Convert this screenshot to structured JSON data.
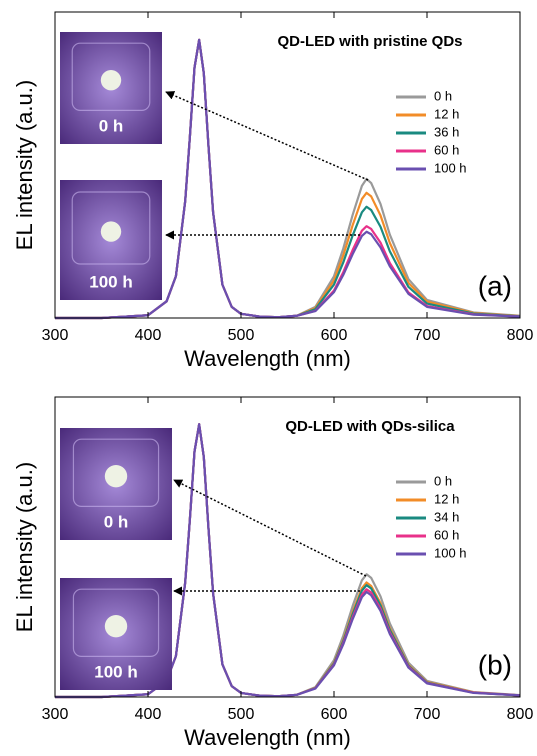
{
  "chart_data": [
    {
      "type": "line",
      "title": "QD-LED with pristine QDs",
      "panel_label": "(a)",
      "xlabel": "Wavelength (nm)",
      "ylabel": "EL intensity (a.u.)",
      "xlim": [
        300,
        800
      ],
      "xticks": [
        300,
        400,
        500,
        600,
        700,
        800
      ],
      "ylim": [
        0,
        1.1
      ],
      "legend": "upper right",
      "insets": [
        "0 h",
        "100 h"
      ],
      "x": [
        300,
        350,
        400,
        420,
        430,
        440,
        445,
        450,
        455,
        460,
        465,
        470,
        480,
        490,
        500,
        520,
        540,
        560,
        580,
        600,
        610,
        620,
        630,
        635,
        640,
        650,
        660,
        680,
        700,
        750,
        800
      ],
      "series": [
        {
          "name": "0 h",
          "color": "#9a9a9a",
          "values": [
            0,
            0,
            0.01,
            0.06,
            0.15,
            0.42,
            0.65,
            0.9,
            1.0,
            0.88,
            0.62,
            0.38,
            0.12,
            0.04,
            0.015,
            0.005,
            0.003,
            0.008,
            0.04,
            0.15,
            0.25,
            0.37,
            0.475,
            0.5,
            0.485,
            0.41,
            0.3,
            0.14,
            0.065,
            0.02,
            0.008
          ]
        },
        {
          "name": "12 h",
          "color": "#f28c28",
          "values": [
            0,
            0,
            0.01,
            0.06,
            0.15,
            0.42,
            0.65,
            0.9,
            1.0,
            0.88,
            0.62,
            0.38,
            0.12,
            0.04,
            0.015,
            0.005,
            0.003,
            0.008,
            0.036,
            0.135,
            0.225,
            0.333,
            0.428,
            0.45,
            0.437,
            0.369,
            0.27,
            0.126,
            0.059,
            0.018,
            0.007
          ]
        },
        {
          "name": "36 h",
          "color": "#1a8a80",
          "values": [
            0,
            0,
            0.01,
            0.06,
            0.15,
            0.42,
            0.65,
            0.9,
            1.0,
            0.88,
            0.62,
            0.38,
            0.12,
            0.04,
            0.015,
            0.005,
            0.003,
            0.008,
            0.032,
            0.12,
            0.2,
            0.296,
            0.38,
            0.4,
            0.388,
            0.328,
            0.24,
            0.112,
            0.052,
            0.016,
            0.006
          ]
        },
        {
          "name": "60 h",
          "color": "#e8318a",
          "values": [
            0,
            0,
            0.01,
            0.06,
            0.15,
            0.42,
            0.65,
            0.9,
            1.0,
            0.88,
            0.62,
            0.38,
            0.12,
            0.04,
            0.015,
            0.005,
            0.003,
            0.008,
            0.026,
            0.099,
            0.165,
            0.244,
            0.314,
            0.33,
            0.32,
            0.271,
            0.198,
            0.092,
            0.043,
            0.013,
            0.005
          ]
        },
        {
          "name": "100 h",
          "color": "#6a4fb0",
          "values": [
            0,
            0,
            0.01,
            0.06,
            0.15,
            0.42,
            0.65,
            0.9,
            1.0,
            0.88,
            0.62,
            0.38,
            0.12,
            0.04,
            0.015,
            0.005,
            0.003,
            0.008,
            0.025,
            0.093,
            0.155,
            0.229,
            0.295,
            0.31,
            0.301,
            0.254,
            0.186,
            0.087,
            0.04,
            0.012,
            0.005
          ]
        }
      ]
    },
    {
      "type": "line",
      "title": "QD-LED with QDs-silica",
      "panel_label": "(b)",
      "xlabel": "Wavelength (nm)",
      "ylabel": "EL intensity (a.u.)",
      "xlim": [
        300,
        800
      ],
      "xticks": [
        300,
        400,
        500,
        600,
        700,
        800
      ],
      "ylim": [
        0,
        1.1
      ],
      "legend": "upper right",
      "insets": [
        "0 h",
        "100 h"
      ],
      "x": [
        300,
        350,
        400,
        420,
        430,
        440,
        445,
        450,
        455,
        460,
        465,
        470,
        480,
        490,
        500,
        520,
        540,
        560,
        580,
        600,
        610,
        620,
        630,
        635,
        640,
        650,
        660,
        680,
        700,
        750,
        800
      ],
      "series": [
        {
          "name": "0 h",
          "color": "#9a9a9a",
          "values": [
            0,
            0,
            0.01,
            0.06,
            0.15,
            0.42,
            0.65,
            0.9,
            1.0,
            0.88,
            0.62,
            0.38,
            0.12,
            0.04,
            0.015,
            0.005,
            0.003,
            0.008,
            0.036,
            0.135,
            0.225,
            0.333,
            0.428,
            0.45,
            0.437,
            0.369,
            0.27,
            0.126,
            0.059,
            0.018,
            0.007
          ]
        },
        {
          "name": "12 h",
          "color": "#f28c28",
          "values": [
            0,
            0,
            0.01,
            0.06,
            0.15,
            0.42,
            0.65,
            0.9,
            1.0,
            0.88,
            0.62,
            0.38,
            0.12,
            0.04,
            0.015,
            0.005,
            0.003,
            0.008,
            0.034,
            0.126,
            0.21,
            0.311,
            0.399,
            0.42,
            0.407,
            0.344,
            0.252,
            0.118,
            0.055,
            0.017,
            0.006
          ]
        },
        {
          "name": "34 h",
          "color": "#1a8a80",
          "values": [
            0,
            0,
            0.01,
            0.06,
            0.15,
            0.42,
            0.65,
            0.9,
            1.0,
            0.88,
            0.62,
            0.38,
            0.12,
            0.04,
            0.015,
            0.005,
            0.003,
            0.008,
            0.033,
            0.123,
            0.205,
            0.303,
            0.39,
            0.41,
            0.398,
            0.336,
            0.246,
            0.115,
            0.053,
            0.016,
            0.006
          ]
        },
        {
          "name": "60 h",
          "color": "#e8318a",
          "values": [
            0,
            0,
            0.01,
            0.06,
            0.15,
            0.42,
            0.65,
            0.9,
            1.0,
            0.88,
            0.62,
            0.38,
            0.12,
            0.04,
            0.015,
            0.005,
            0.003,
            0.008,
            0.032,
            0.119,
            0.198,
            0.292,
            0.375,
            0.395,
            0.383,
            0.324,
            0.237,
            0.111,
            0.051,
            0.016,
            0.006
          ]
        },
        {
          "name": "100 h",
          "color": "#6a4fb0",
          "values": [
            0,
            0,
            0.01,
            0.06,
            0.15,
            0.42,
            0.65,
            0.9,
            1.0,
            0.88,
            0.62,
            0.38,
            0.12,
            0.04,
            0.015,
            0.005,
            0.003,
            0.008,
            0.031,
            0.116,
            0.193,
            0.285,
            0.366,
            0.385,
            0.373,
            0.316,
            0.231,
            0.108,
            0.05,
            0.015,
            0.006
          ]
        }
      ]
    }
  ]
}
